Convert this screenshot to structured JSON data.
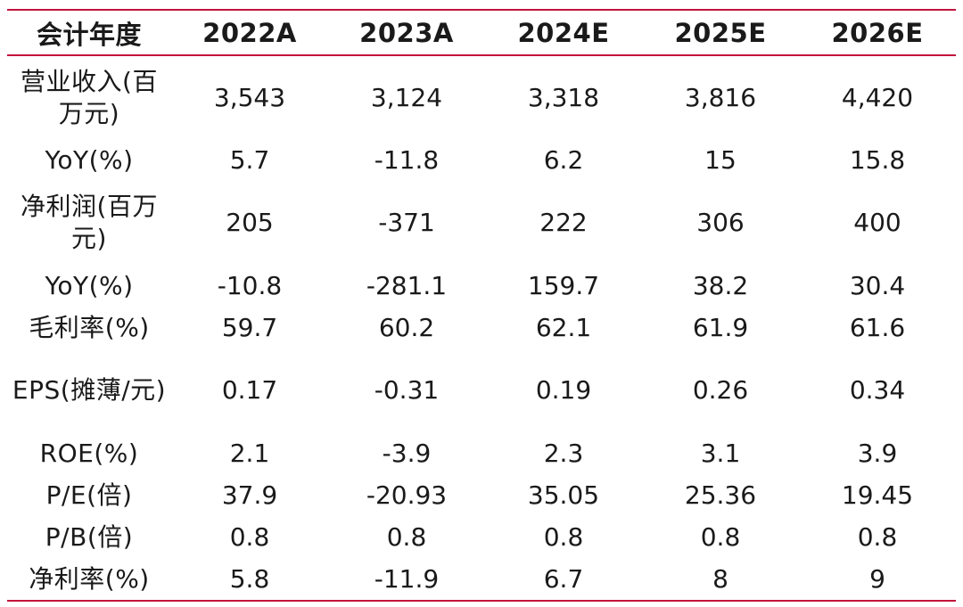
{
  "table": {
    "columns": [
      "会计年度",
      "2022A",
      "2023A",
      "2024E",
      "2025E",
      "2026E"
    ],
    "rows": [
      {
        "label": "营业收入(百万元)",
        "values": [
          "3,543",
          "3,124",
          "3,318",
          "3,816",
          "4,420"
        ]
      },
      {
        "label": "YoY(%)",
        "values": [
          "5.7",
          "-11.8",
          "6.2",
          "15",
          "15.8"
        ]
      },
      {
        "label": "净利润(百万元)",
        "values": [
          "205",
          "-371",
          "222",
          "306",
          "400"
        ]
      },
      {
        "label": "YoY(%)",
        "values": [
          "-10.8",
          "-281.1",
          "159.7",
          "38.2",
          "30.4"
        ]
      },
      {
        "label": "毛利率(%)",
        "values": [
          "59.7",
          "60.2",
          "62.1",
          "61.9",
          "61.6"
        ]
      },
      {
        "label": "EPS(摊薄/元)",
        "values": [
          "0.17",
          "-0.31",
          "0.19",
          "0.26",
          "0.34"
        ]
      },
      {
        "label": "ROE(%)",
        "values": [
          "2.1",
          "-3.9",
          "2.3",
          "3.1",
          "3.9"
        ]
      },
      {
        "label": "P/E(倍)",
        "values": [
          "37.9",
          "-20.93",
          "35.05",
          "25.36",
          "19.45"
        ]
      },
      {
        "label": "P/B(倍)",
        "values": [
          "0.8",
          "0.8",
          "0.8",
          "0.8",
          "0.8"
        ]
      },
      {
        "label": "净利率(%)",
        "values": [
          "5.8",
          "-11.9",
          "6.7",
          "8",
          "9"
        ]
      }
    ],
    "accent_color": "#c2143b"
  }
}
